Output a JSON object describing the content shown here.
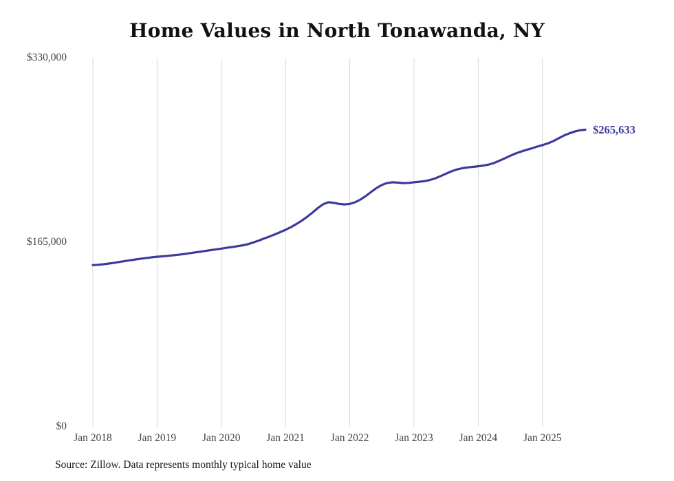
{
  "source_note": "Source: Zillow. Data represents monthly typical home value",
  "chart_data": {
    "type": "line",
    "title": "Home Values in North Tonawanda, NY",
    "series_name": "Monthly typical home value",
    "x_start": "Jan 2018",
    "x_end": "Sep 2025",
    "x_unit": "month",
    "x_tick_labels": [
      "Jan 2018",
      "Jan 2019",
      "Jan 2020",
      "Jan 2021",
      "Jan 2022",
      "Jan 2023",
      "Jan 2024",
      "Jan 2025"
    ],
    "y_ticks": [
      {
        "label": "$0",
        "value": 0
      },
      {
        "label": "$165,000",
        "value": 165000
      },
      {
        "label": "$330,000",
        "value": 330000
      }
    ],
    "ylim": [
      0,
      330000
    ],
    "grid": "vertical-only",
    "legend": "none",
    "end_label": "$265,633",
    "end_value": 265633,
    "line_color": "#3d3a9e",
    "grid_color": "#d8d8d8",
    "values": [
      144500,
      144800,
      145300,
      145900,
      146600,
      147400,
      148100,
      148900,
      149600,
      150300,
      150900,
      151500,
      152000,
      152400,
      152800,
      153300,
      153800,
      154400,
      155100,
      155800,
      156500,
      157200,
      157900,
      158600,
      159300,
      160000,
      160700,
      161400,
      162200,
      163300,
      164800,
      166500,
      168300,
      170100,
      172000,
      174000,
      176100,
      178500,
      181200,
      184200,
      187600,
      191400,
      195500,
      198900,
      200800,
      200300,
      199300,
      198800,
      199300,
      200800,
      203200,
      206400,
      210000,
      213500,
      216300,
      218000,
      218600,
      218300,
      217900,
      218100,
      218600,
      219100,
      219700,
      220700,
      222200,
      224200,
      226400,
      228400,
      230100,
      231200,
      231900,
      232400,
      233000,
      233600,
      234500,
      236000,
      238000,
      240200,
      242400,
      244400,
      246100,
      247600,
      249000,
      250600,
      251900,
      253400,
      255400,
      257900,
      260400,
      262400,
      264000,
      265200,
      265633
    ]
  }
}
